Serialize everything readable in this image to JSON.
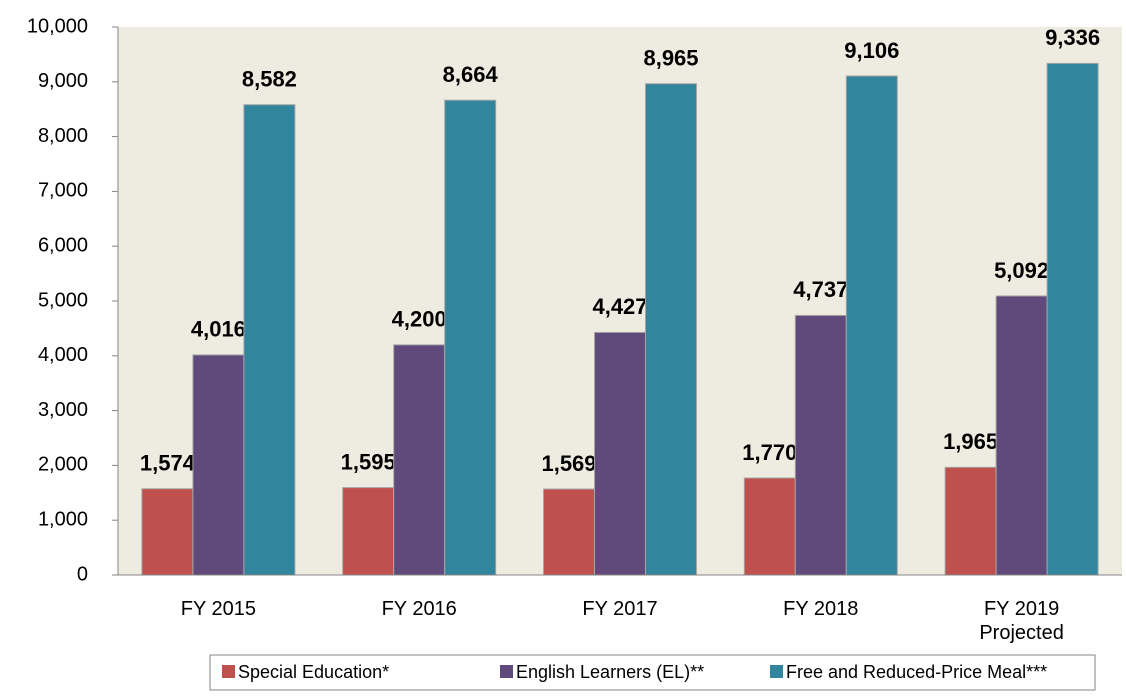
{
  "chart_data": {
    "type": "bar",
    "categories": [
      "FY 2015",
      "FY 2016",
      "FY 2017",
      "FY 2018",
      "FY 2019 Projected"
    ],
    "series": [
      {
        "name": "Special Education*",
        "color": "#c0504d",
        "values": [
          1574,
          1595,
          1569,
          1770,
          1965
        ],
        "value_labels": [
          "1,574",
          "1,595",
          "1,569",
          "1,770",
          "1,965"
        ]
      },
      {
        "name": "English Learners (EL)**",
        "color": "#604a7b",
        "values": [
          4016,
          4200,
          4427,
          4737,
          5092
        ],
        "value_labels": [
          "4,016",
          "4,200",
          "4,427",
          "4,737",
          "5,092"
        ]
      },
      {
        "name": "Free and Reduced-Price Meal***",
        "color": "#31859c",
        "values": [
          8582,
          8664,
          8965,
          9106,
          9336
        ],
        "value_labels": [
          "8,582",
          "8,664",
          "8,965",
          "9,106",
          "9,336"
        ]
      }
    ],
    "ylim": [
      0,
      10000
    ],
    "yticks": [
      0,
      {
        "value": 1000,
        "label": "1,000"
      },
      {
        "value": 2000,
        "label": "2,000"
      },
      {
        "value": 3000,
        "label": "3,000"
      },
      {
        "value": 4000,
        "label": "4,000"
      },
      {
        "value": 5000,
        "label": "5,000"
      },
      {
        "value": 6000,
        "label": "6,000"
      },
      {
        "value": 7000,
        "label": "7,000"
      },
      {
        "value": 8000,
        "label": "8,000"
      },
      {
        "value": 9000,
        "label": "9,000"
      },
      {
        "value": 10000,
        "label": "10,000"
      }
    ],
    "legend": "bottom"
  }
}
